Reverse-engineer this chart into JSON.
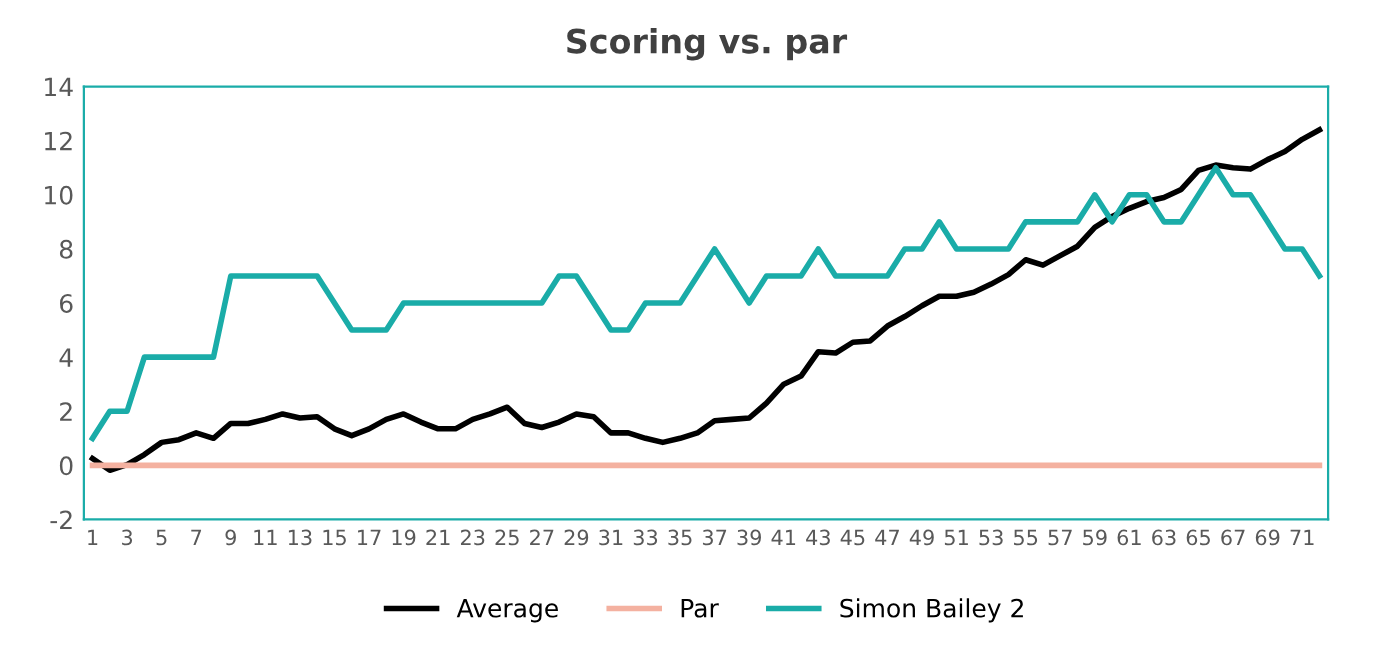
{
  "chart_data": {
    "type": "line",
    "title": "Scoring vs. par",
    "categories": [
      "1",
      null,
      "3",
      null,
      "5",
      null,
      "7",
      null,
      "9",
      null,
      "11",
      null,
      "13",
      null,
      "15",
      null,
      "17",
      null,
      "19",
      null,
      "21",
      null,
      "23",
      null,
      "25",
      null,
      "27",
      null,
      "29",
      null,
      "31",
      null,
      "33",
      null,
      "35",
      null,
      "37",
      null,
      "39",
      null,
      "41",
      null,
      "43",
      null,
      "45",
      null,
      "47",
      null,
      "49",
      null,
      "51",
      null,
      "53",
      null,
      "55",
      null,
      "57",
      null,
      "59",
      null,
      "61",
      null,
      "63",
      null,
      "65",
      null,
      "67",
      null,
      "69",
      null,
      "71",
      null
    ],
    "series": [
      {
        "name": "Average",
        "color": "#000000",
        "values": [
          0.25,
          -0.18,
          0.03,
          0.4,
          0.85,
          0.95,
          1.2,
          1.0,
          1.55,
          1.55,
          1.7,
          1.9,
          1.75,
          1.8,
          1.35,
          1.1,
          1.35,
          1.7,
          1.9,
          1.6,
          1.35,
          1.35,
          1.7,
          1.9,
          2.15,
          1.55,
          1.4,
          1.6,
          1.9,
          1.8,
          1.2,
          1.2,
          1.0,
          0.85,
          1.0,
          1.2,
          1.65,
          1.7,
          1.75,
          2.3,
          3.0,
          3.3,
          4.2,
          4.15,
          4.55,
          4.6,
          5.15,
          5.5,
          5.9,
          6.25,
          6.25,
          6.4,
          6.7,
          7.05,
          7.6,
          7.4,
          7.75,
          8.1,
          8.8,
          9.2,
          9.5,
          9.75,
          9.9,
          10.2,
          10.9,
          11.1,
          11.0,
          10.95,
          11.3,
          11.6,
          12.05,
          12.4
        ]
      },
      {
        "name": "Par",
        "color": "#f4b1a0",
        "values": [
          0,
          0,
          0,
          0,
          0,
          0,
          0,
          0,
          0,
          0,
          0,
          0,
          0,
          0,
          0,
          0,
          0,
          0,
          0,
          0,
          0,
          0,
          0,
          0,
          0,
          0,
          0,
          0,
          0,
          0,
          0,
          0,
          0,
          0,
          0,
          0,
          0,
          0,
          0,
          0,
          0,
          0,
          0,
          0,
          0,
          0,
          0,
          0,
          0,
          0,
          0,
          0,
          0,
          0,
          0,
          0,
          0,
          0,
          0,
          0,
          0,
          0,
          0,
          0,
          0,
          0,
          0,
          0,
          0,
          0,
          0,
          0
        ]
      },
      {
        "name": "Simon Bailey 2",
        "color": "#1aaca8",
        "values": [
          1,
          2,
          2,
          4,
          4,
          4,
          4,
          4,
          7,
          7,
          7,
          7,
          7,
          7,
          6,
          5,
          5,
          5,
          6,
          6,
          6,
          6,
          6,
          6,
          6,
          6,
          6,
          7,
          7,
          6,
          5,
          5,
          6,
          6,
          6,
          7,
          8,
          7,
          6,
          7,
          7,
          7,
          8,
          7,
          7,
          7,
          7,
          8,
          8,
          9,
          8,
          8,
          8,
          8,
          9,
          9,
          9,
          9,
          10,
          9,
          10,
          10,
          9,
          9,
          10,
          11,
          10,
          10,
          9,
          8,
          8,
          7
        ]
      }
    ],
    "ylim": [
      -2,
      14
    ],
    "yticks": [
      -2,
      0,
      2,
      4,
      6,
      8,
      10,
      12,
      14
    ],
    "grid": false,
    "legend": "bottom",
    "marker": "none",
    "line_style": "solid"
  }
}
